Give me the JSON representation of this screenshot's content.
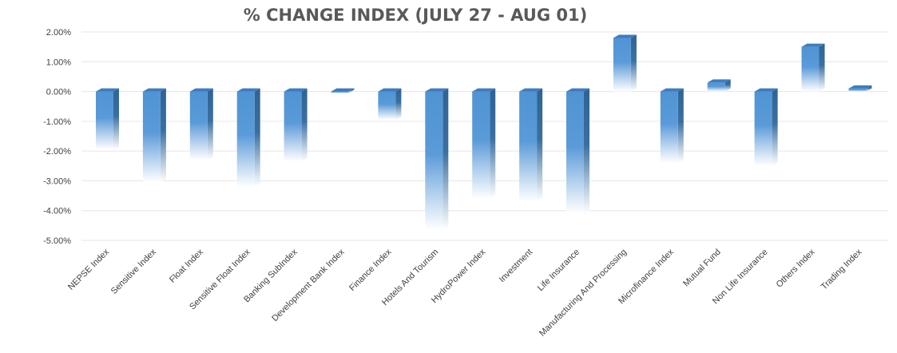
{
  "chart_data": {
    "type": "bar",
    "title": "% CHANGE INDEX (JULY 27 - AUG 01)",
    "xlabel": "",
    "ylabel": "",
    "ylim": [
      -5.0,
      2.0
    ],
    "yticks": [
      2.0,
      1.0,
      0.0,
      -1.0,
      -2.0,
      -3.0,
      -4.0,
      -5.0
    ],
    "ytick_labels": [
      "2.00%",
      "1.00%",
      "0.00%",
      "-1.00%",
      "-2.00%",
      "-3.00%",
      "-4.00%",
      "-5.00%"
    ],
    "grid": true,
    "legend": "none",
    "bar_color": "#4f94d4",
    "categories": [
      "NEPSE Index",
      "Sensitive Index",
      "Float Index",
      "Sensitive Float Index",
      "Banking SubIndex",
      "Development Bank Index",
      "Finance Index",
      "Hotels And Tourism",
      "HydroPower Index",
      "Investment",
      "Life Insurance",
      "Manufacturing And Processing",
      "Microfinance Index",
      "Mutual Fund",
      "Non Life Insurance",
      "Others Index",
      "Trading Index"
    ],
    "values": [
      -1.95,
      -3.05,
      -2.3,
      -3.2,
      -2.35,
      -0.05,
      -0.95,
      -4.65,
      -3.6,
      -3.7,
      -4.1,
      1.8,
      -2.4,
      0.3,
      -2.5,
      1.5,
      0.1
    ]
  }
}
